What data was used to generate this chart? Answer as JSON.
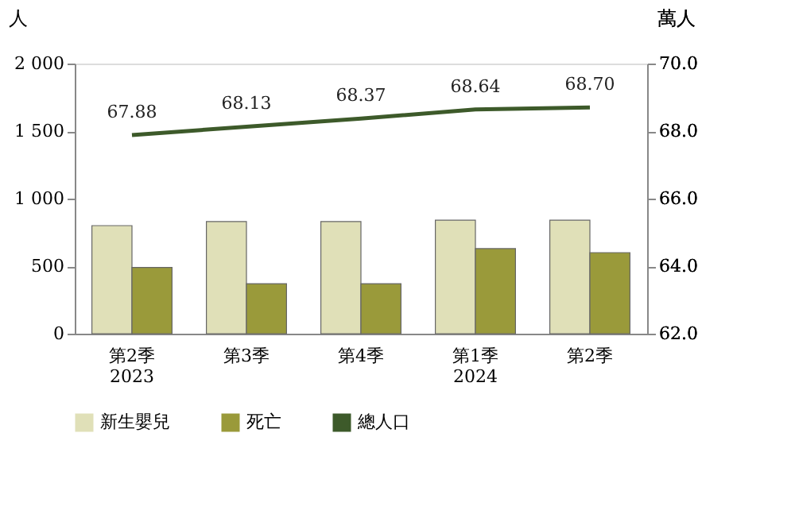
{
  "chart_data": {
    "type": "bar",
    "ylabel": "人",
    "y2label": "萬人",
    "categories": [
      "第2季\n2023",
      "第3季",
      "第4季",
      "第1季\n2024",
      "第2季"
    ],
    "series": [
      {
        "name": "新生嬰兒",
        "color": "#e0e0b8",
        "values": [
          800,
          830,
          830,
          840,
          840
        ]
      },
      {
        "name": "死亡",
        "color": "#9a9a3a",
        "values": [
          490,
          370,
          370,
          630,
          600
        ]
      },
      {
        "name": "總人口",
        "color": "#3d5a2a",
        "type": "line",
        "axis": "y2",
        "values": [
          67.88,
          68.13,
          68.37,
          68.64,
          68.7
        ],
        "value_labels": [
          "67.88",
          "68.13",
          "68.37",
          "68.64",
          "68.70"
        ]
      }
    ],
    "ylim": [
      0,
      2000
    ],
    "yticks": [
      {
        "value": 0,
        "label": "0"
      },
      {
        "value": 500,
        "label": "500"
      },
      {
        "value": 1000,
        "label": "1 000"
      },
      {
        "value": 1500,
        "label": "1 500"
      },
      {
        "value": 2000,
        "label": "2 000"
      }
    ],
    "y2lim": [
      62,
      70
    ],
    "y2ticks": [
      {
        "value": 62,
        "label": "62.0"
      },
      {
        "value": 64,
        "label": "64.0"
      },
      {
        "value": 66,
        "label": "66.0"
      },
      {
        "value": 68,
        "label": "68.0"
      },
      {
        "value": 70,
        "label": "70.0"
      }
    ],
    "legend": "bottom",
    "grid": false
  }
}
